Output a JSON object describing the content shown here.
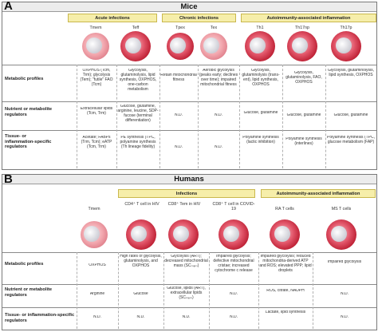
{
  "panelA": {
    "label": "A",
    "title": "Mice",
    "categories": [
      "Acute infections",
      "Chronic infections",
      "Autoimmunity-associated inflammation"
    ],
    "columns": [
      "Tmem",
      "Teff",
      "Tpex",
      "Tex",
      "Th1",
      "Th17np",
      "Th17p"
    ],
    "rows": [
      {
        "label": "Metabolic profiles",
        "cells": [
          "OXPHOS (Tcm, Trm); glycolysis (Tem); \"futile\" FAO (Tcm)",
          "Glycolysis, glutaminolysis, lipid synthesis, OXPHOS, one-carbon metabolism",
          "Retain mitochondrial fitness",
          "Aerobic glycolysis (peaks early; declines over time); impaired mitochondrial fitness",
          "Glycolysis, glutaminolysis (trans-ent), lipid synthesis, OXPHOS",
          "Glycolysis, glutaminolysis, FAO, OXPHOS",
          "Glycolysis, glutaminolysis, lipid synthesis, OXPHOS"
        ]
      },
      {
        "label": "Nutrient or metabolite regulators",
        "cells": [
          "Extracellular lipids (Tcm, Trm)",
          "Glucose, glutamine, arginine, leucine, SDP-fucose (terminal differentiation)",
          "N.D.",
          "N.D.",
          "Glucose, glutamine",
          "Glucose, glutamine",
          "Glucose, glutamine"
        ]
      },
      {
        "label": "Tissue- or inflammation-specific regulators",
        "cells": [
          "Acetate; FABPs (Trm, Tcm); eATP (Tcm, Trm)",
          "PE synthesis (TPC, polyamine synthesis (Th lineage fidelity)",
          "N.D.",
          "N.D.",
          "Polyamine synthesis (lactic inhibition)",
          "Polyamine synthesis (interlines)",
          "Polyamine synthesis (TPC, glucose metabolism (FAP)"
        ]
      }
    ]
  },
  "panelB": {
    "label": "B",
    "title": "Humans",
    "categories": [
      "Infections",
      "Autoimmunity-associated inflammation"
    ],
    "columns": [
      "Tmem",
      "CD4⁺ T cell in HIV",
      "CD8⁺ Tem in HIV",
      "CD8⁺ T cell in COVID-19",
      "RA T cells",
      "MS T cells"
    ],
    "rows": [
      {
        "label": "Metabolic profiles",
        "cells": [
          "OXPHOS",
          "High rates of glycolysis, glutaminolysis, and OXPHOS",
          "Glycolysis (ART); decreased mitochondrial mass (SCₘₑₘ)",
          "Impaired glycolysis; defective mitochondrial cristae; increased cytochrome c release",
          "Impaired glycolysis; reduced mitochondria-derived ATP and ROS; elevated PPP; lipid droplets",
          "Impaired glycolysis"
        ]
      },
      {
        "label": "Nutrient or metabolite regulators",
        "cells": [
          "Arginine",
          "Glucose",
          "Glucose, lipids (ART), extracellular lipids (SCₘₑₘ)",
          "N.D.",
          "ROS, citrate, NADPH",
          "N.D."
        ]
      },
      {
        "label": "Tissue- or inflammation-specific regulators",
        "cells": [
          "N.D.",
          "N.D.",
          "N.D.",
          "N.D.",
          "Lactate, lipid synthesis",
          "N.D."
        ]
      }
    ]
  },
  "colors": {
    "cell_fill": "#cf2a3c",
    "cell_fill_light": "#f2a7ae",
    "nucleus": "#d9d9df",
    "category_fill": "#f6eeaa",
    "title_bar": "#ececec"
  }
}
